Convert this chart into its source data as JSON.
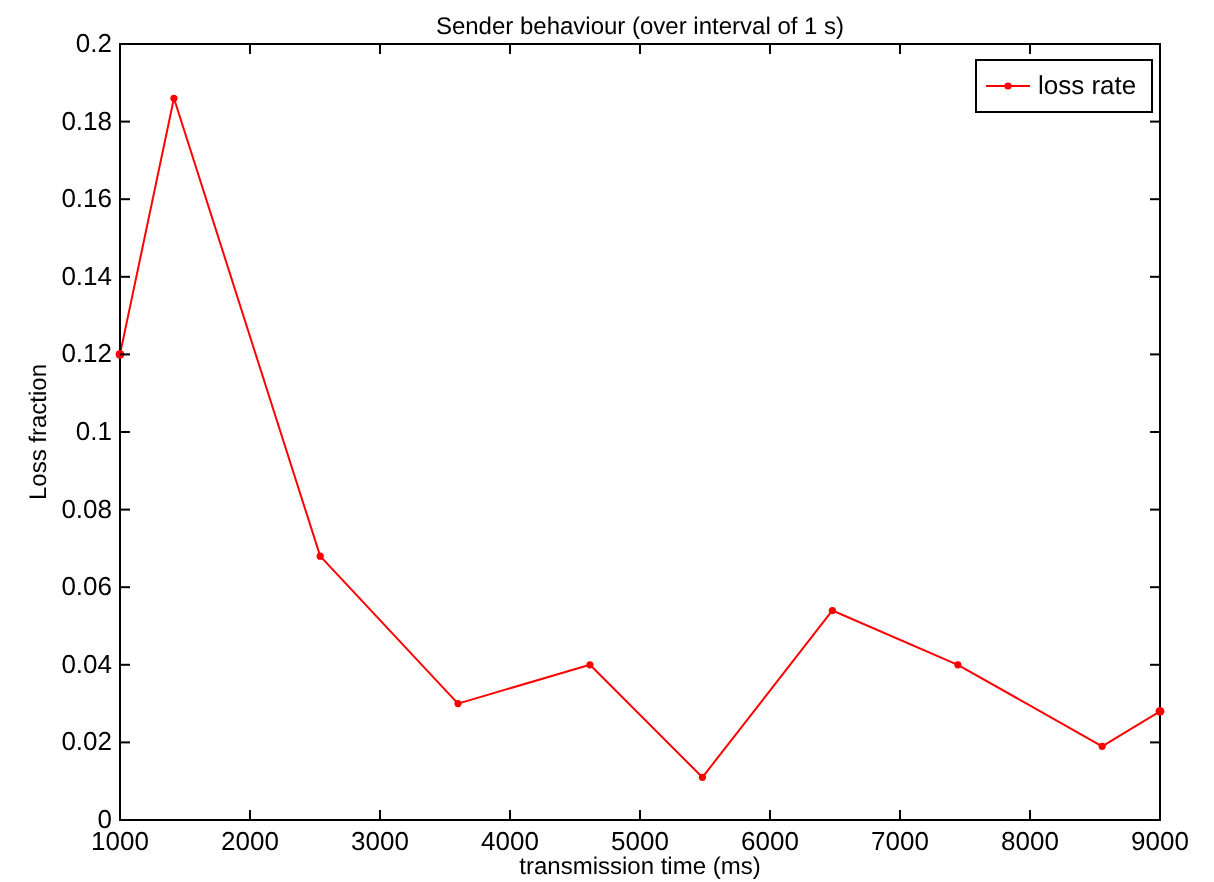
{
  "chart_data": {
    "type": "line",
    "title": "Sender behaviour (over interval of 1 s)",
    "xlabel": "transmission time (ms)",
    "ylabel": "Loss fraction",
    "series": [
      {
        "name": "loss rate",
        "color": "#ff0000",
        "x": [
          1000,
          1415,
          2540,
          3600,
          4615,
          5480,
          6480,
          7445,
          8555,
          9000
        ],
        "values": [
          0.12,
          0.186,
          0.068,
          0.03,
          0.04,
          0.011,
          0.054,
          0.04,
          0.019,
          0.028
        ]
      }
    ],
    "xlim": [
      1000,
      9000
    ],
    "xticks": [
      1000,
      2000,
      3000,
      4000,
      5000,
      6000,
      7000,
      8000,
      9000
    ],
    "ylim": [
      0,
      0.2
    ],
    "yticks": [
      0,
      0.02,
      0.04,
      0.06,
      0.08,
      0.1,
      0.12,
      0.14,
      0.16,
      0.18,
      0.2
    ],
    "grid": false,
    "legend": "top right",
    "marker": "circle",
    "line_style": "solid"
  }
}
